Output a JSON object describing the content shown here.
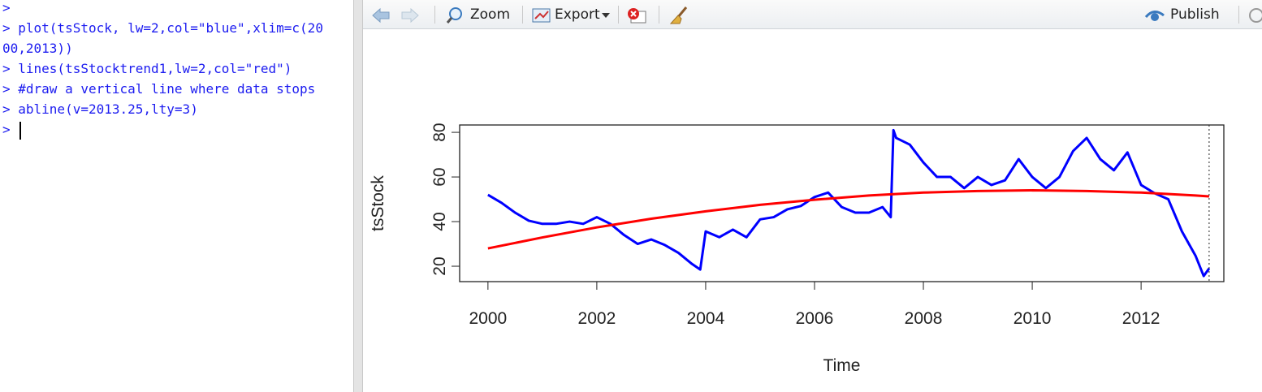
{
  "console": {
    "lines": [
      ">",
      "> plot(tsStock, lw=2,col=\"blue\",xlim=c(20",
      "00,2013))",
      "> lines(tsStocktrend1,lw=2,col=\"red\")",
      "> #draw a vertical line where data stops",
      "> abline(v=2013.25,lty=3)",
      ">"
    ]
  },
  "toolbar": {
    "zoom": "Zoom",
    "export": "Export",
    "publish": "Publish"
  },
  "chart_data": {
    "type": "line",
    "xlabel": "Time",
    "ylabel": "tsStock",
    "xlim": [
      1999.48,
      2013.52
    ],
    "ylim": [
      13.1,
      83.3
    ],
    "xticks": [
      2000,
      2002,
      2004,
      2006,
      2008,
      2010,
      2012
    ],
    "yticks": [
      20,
      40,
      60,
      80
    ],
    "vline": 2013.25,
    "series": [
      {
        "name": "tsStock",
        "color": "#0000ff",
        "x": [
          2000,
          2000.25,
          2000.5,
          2000.75,
          2001,
          2001.25,
          2001.5,
          2001.75,
          2002,
          2002.25,
          2002.5,
          2002.75,
          2003,
          2003.25,
          2003.5,
          2003.75,
          2003.9,
          2004,
          2004.25,
          2004.5,
          2004.75,
          2005,
          2005.25,
          2005.5,
          2005.75,
          2006,
          2006.25,
          2006.5,
          2006.75,
          2007,
          2007.25,
          2007.4,
          2007.45,
          2007.5,
          2007.75,
          2008,
          2008.25,
          2008.5,
          2008.75,
          2009,
          2009.25,
          2009.5,
          2009.75,
          2010,
          2010.25,
          2010.5,
          2010.75,
          2011,
          2011.25,
          2011.5,
          2011.75,
          2012,
          2012.25,
          2012.5,
          2012.75,
          2013,
          2013.15,
          2013.25
        ],
        "values": [
          52,
          48.4,
          44,
          40.4,
          39,
          39,
          40,
          39,
          42,
          39,
          34,
          30,
          32,
          29.5,
          26,
          21,
          18.5,
          35.6,
          33,
          36.4,
          33,
          41,
          42,
          45.5,
          47,
          51,
          53,
          46.5,
          44,
          44,
          46.5,
          42,
          81,
          77.5,
          74.5,
          66.5,
          60,
          60,
          55,
          60,
          56.4,
          58.5,
          68,
          60,
          55,
          60,
          71.6,
          77.5,
          68,
          63,
          71,
          56.4,
          52.7,
          50,
          35.6,
          24.7,
          15.6,
          19
        ]
      },
      {
        "name": "tsStocktrend1",
        "color": "#ff0000",
        "x": [
          2000,
          2001,
          2002,
          2003,
          2004,
          2005,
          2006,
          2007,
          2008,
          2009,
          2010,
          2011,
          2012,
          2013,
          2013.25
        ],
        "values": [
          28,
          32.9,
          37.4,
          41.3,
          44.6,
          47.5,
          49.8,
          51.7,
          53,
          53.7,
          54,
          53.7,
          53,
          51.7,
          51.3
        ]
      }
    ]
  }
}
